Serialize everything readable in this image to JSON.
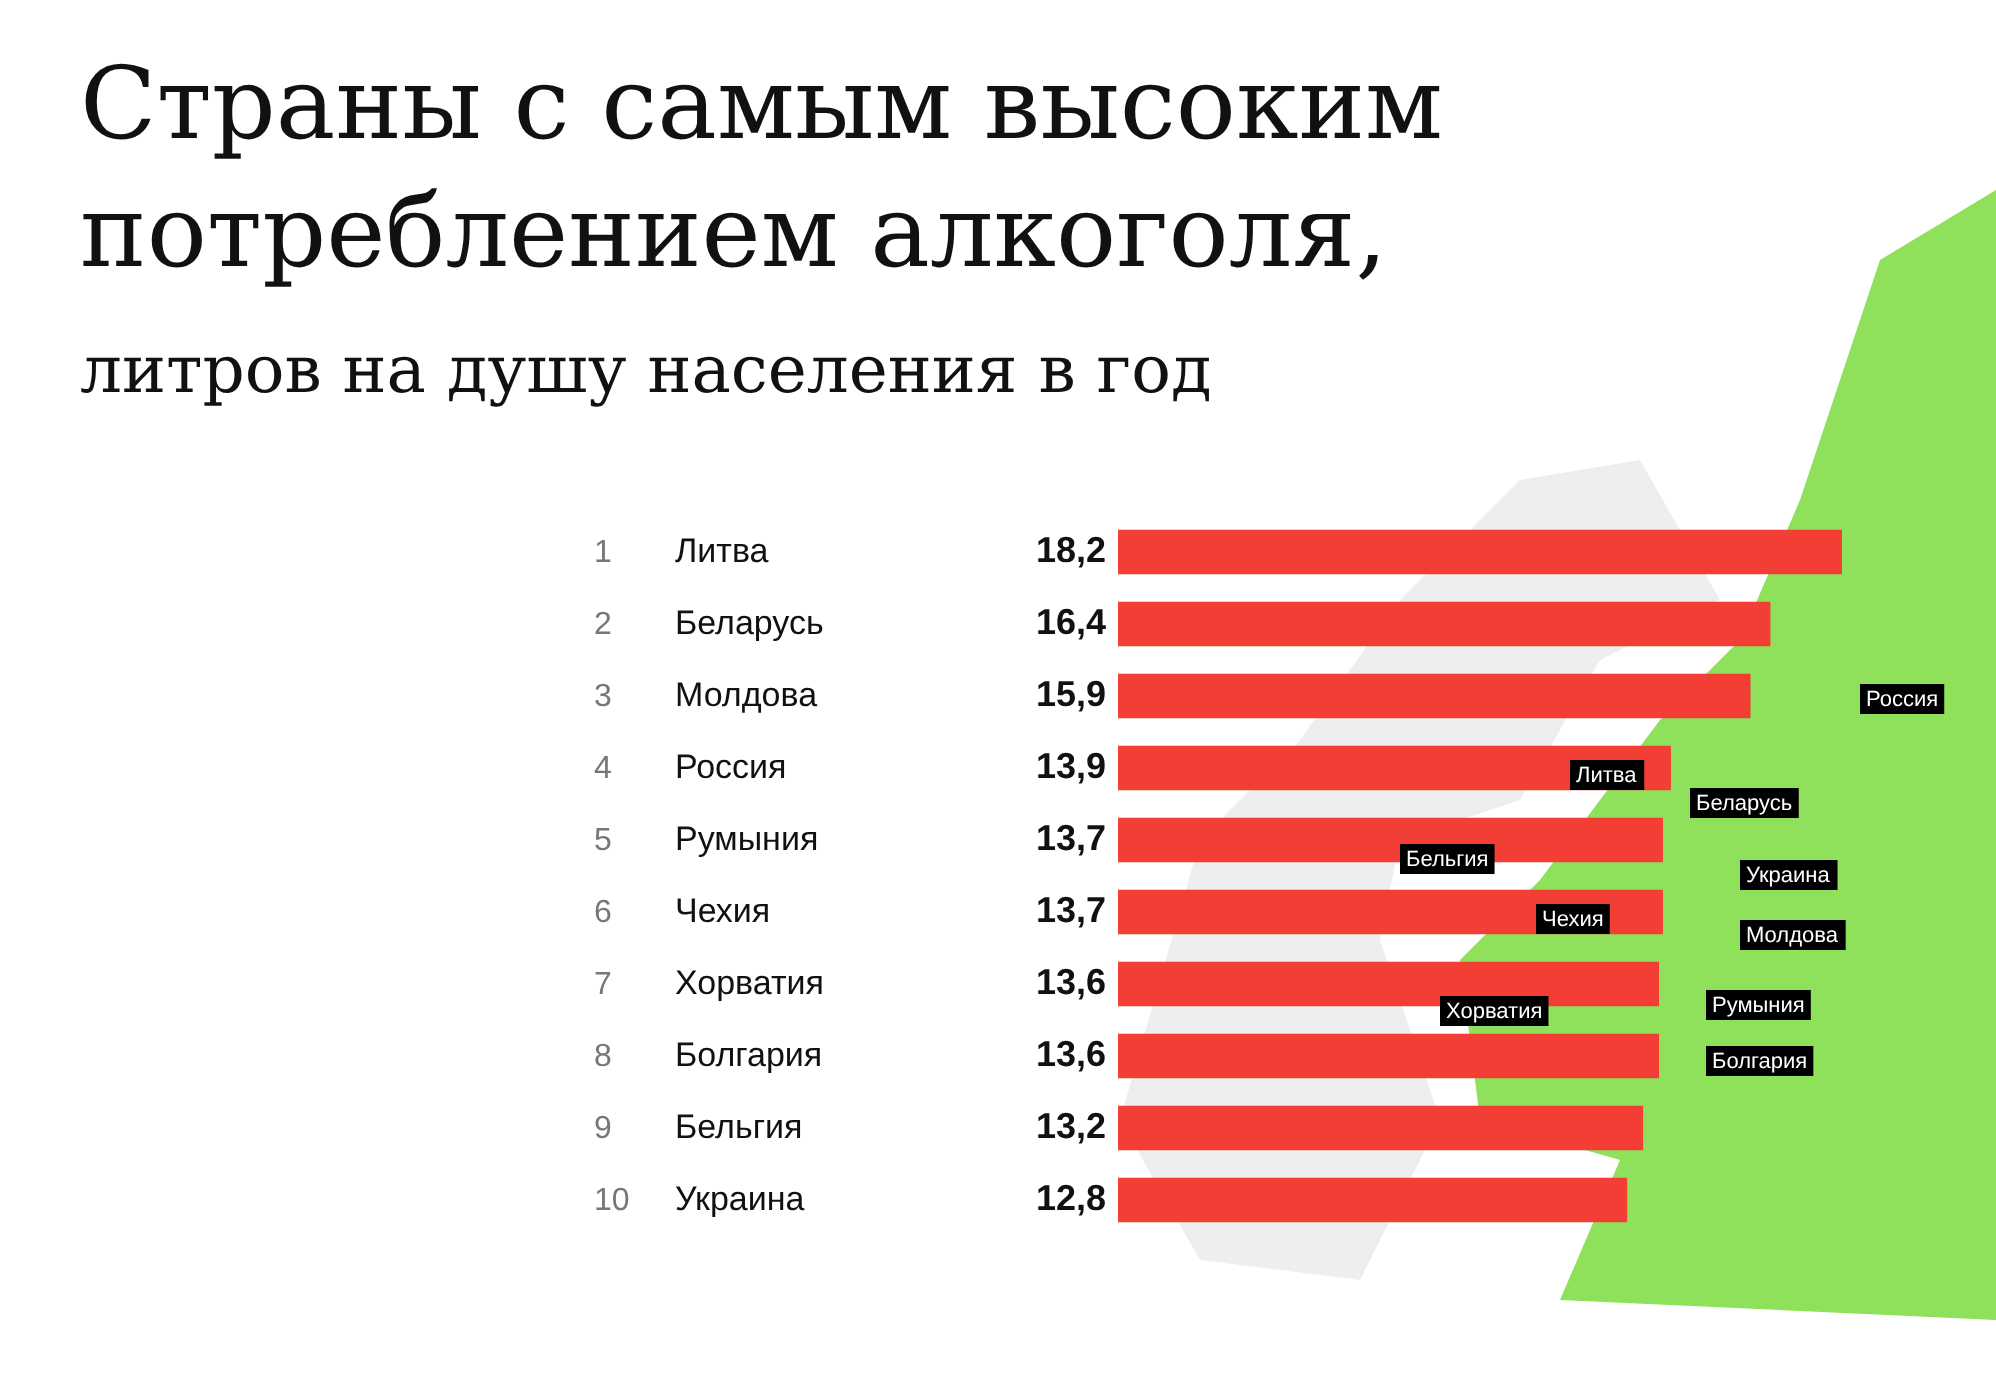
{
  "chart_data": {
    "type": "bar",
    "orientation": "horizontal",
    "title": "Страны с самым высоким потреблением алкоголя,",
    "subtitle": "литров на душу населения в год",
    "categories": [
      "Литва",
      "Беларусь",
      "Молдова",
      "Россия",
      "Румыния",
      "Чехия",
      "Хорватия",
      "Болгария",
      "Бельгия",
      "Украина"
    ],
    "values": [
      18.2,
      16.4,
      15.9,
      13.9,
      13.7,
      13.7,
      13.6,
      13.6,
      13.2,
      12.8
    ],
    "value_labels": [
      "18,2",
      "16,4",
      "15,9",
      "13,9",
      "13,7",
      "13,7",
      "13,6",
      "13,6",
      "13,2",
      "12,8"
    ],
    "color": "#f23e35",
    "annotations": [
      "1",
      "2",
      "3",
      "4",
      "5",
      "6",
      "7",
      "8",
      "9",
      "10",
      "Россия",
      "Литва",
      "Беларусь",
      "Бельгия",
      "Украина",
      "Чехия",
      "Молдова",
      "Хорватия",
      "Румыния",
      "Болгария"
    ]
  }
}
